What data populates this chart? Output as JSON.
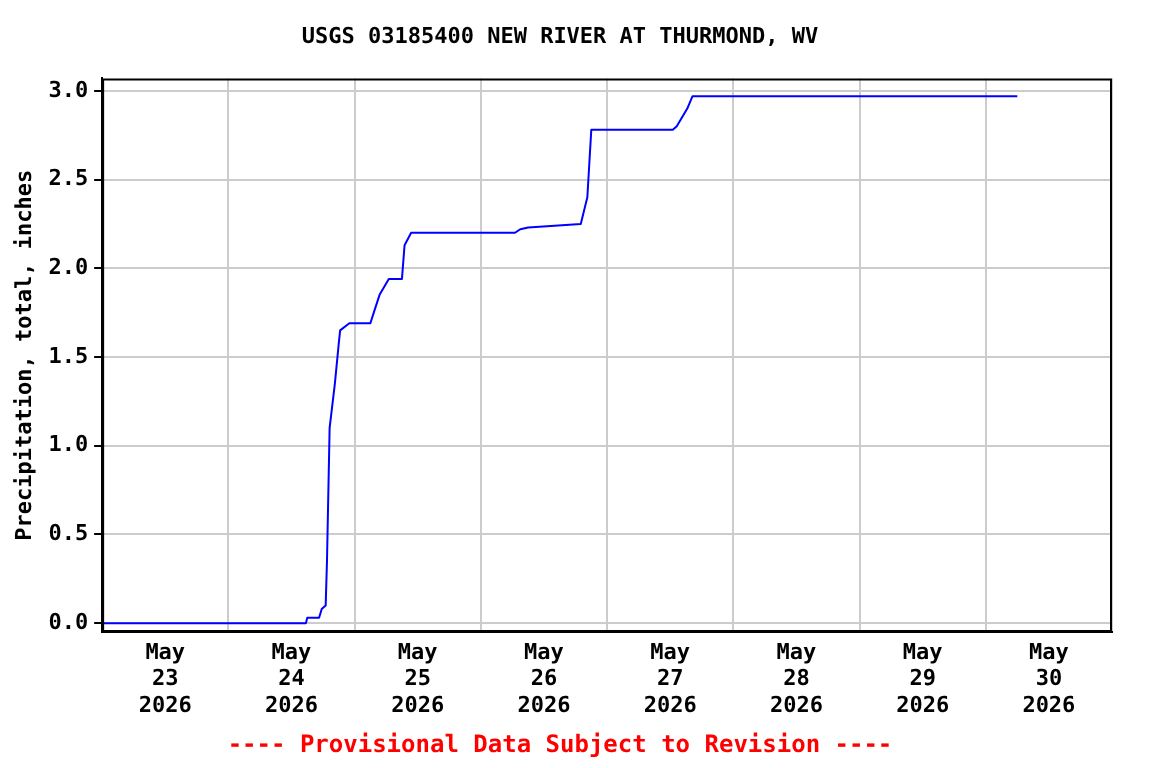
{
  "chart_data": {
    "type": "line",
    "title": "USGS 03185400 NEW RIVER AT THURMOND, WV",
    "ylabel": "Precipitation, total, inches",
    "annotations": [
      "---- Provisional Data Subject to Revision ----"
    ],
    "x": [
      "2026-05-23T00:00",
      "2026-05-24T14:45",
      "2026-05-24T15:00",
      "2026-05-24T17:15",
      "2026-05-24T17:45",
      "2026-05-24T18:30",
      "2026-05-24T18:45",
      "2026-05-24T19:15",
      "2026-05-24T20:15",
      "2026-05-24T21:00",
      "2026-05-24T21:15",
      "2026-05-24T23:00",
      "2026-05-25T03:00",
      "2026-05-25T03:45",
      "2026-05-25T04:45",
      "2026-05-25T06:30",
      "2026-05-25T09:00",
      "2026-05-25T09:30",
      "2026-05-25T10:45",
      "2026-05-26T06:30",
      "2026-05-26T07:30",
      "2026-05-26T09:00",
      "2026-05-26T19:00",
      "2026-05-26T20:15",
      "2026-05-26T21:00",
      "2026-05-27T12:30",
      "2026-05-27T13:15",
      "2026-05-27T15:15",
      "2026-05-27T16:15",
      "2026-05-30T06:00"
    ],
    "series": [
      {
        "color": "#0000ff",
        "values": [
          0,
          0,
          0.03,
          0.03,
          0.08,
          0.1,
          0.35,
          1.1,
          1.35,
          1.58,
          1.65,
          1.69,
          1.69,
          1.76,
          1.85,
          1.94,
          1.94,
          2.13,
          2.2,
          2.2,
          2.22,
          2.23,
          2.25,
          2.4,
          2.78,
          2.78,
          2.8,
          2.9,
          2.97,
          2.97
        ]
      }
    ],
    "xlim": [
      "2026-05-23T00:00",
      "2026-05-31T00:00"
    ],
    "xticks": [
      {
        "value": "2026-05-23T00:00",
        "label": null
      },
      {
        "value": "2026-05-23T12:00",
        "label": "May\n23\n2026"
      },
      {
        "value": "2026-05-24T00:00",
        "label": null
      },
      {
        "value": "2026-05-24T12:00",
        "label": "May\n24\n2026"
      },
      {
        "value": "2026-05-25T00:00",
        "label": null
      },
      {
        "value": "2026-05-25T12:00",
        "label": "May\n25\n2026"
      },
      {
        "value": "2026-05-26T00:00",
        "label": null
      },
      {
        "value": "2026-05-26T12:00",
        "label": "May\n26\n2026"
      },
      {
        "value": "2026-05-27T00:00",
        "label": null
      },
      {
        "value": "2026-05-27T12:00",
        "label": "May\n27\n2026"
      },
      {
        "value": "2026-05-28T00:00",
        "label": null
      },
      {
        "value": "2026-05-28T12:00",
        "label": "May\n28\n2026"
      },
      {
        "value": "2026-05-29T00:00",
        "label": null
      },
      {
        "value": "2026-05-29T12:00",
        "label": "May\n29\n2026"
      },
      {
        "value": "2026-05-30T00:00",
        "label": null
      },
      {
        "value": "2026-05-30T12:00",
        "label": "May\n30\n2026"
      },
      {
        "value": "2026-05-31T00:00",
        "label": null
      }
    ],
    "ylim": [
      -0.05,
      3.07
    ],
    "yticks": [
      {
        "value": 0,
        "label": "0.0"
      },
      {
        "value": 0.5,
        "label": "0.5"
      },
      {
        "value": 1,
        "label": "1.0"
      },
      {
        "value": 1.5,
        "label": "1.5"
      },
      {
        "value": 2,
        "label": "2.0"
      },
      {
        "value": 2.5,
        "label": "2.5"
      },
      {
        "value": 3,
        "label": "3.0"
      }
    ],
    "grid": true,
    "legend": false,
    "marker": "none",
    "line_style": "solid"
  }
}
